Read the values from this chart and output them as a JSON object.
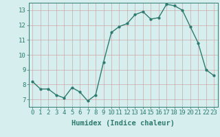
{
  "x": [
    0,
    1,
    2,
    3,
    4,
    5,
    6,
    7,
    8,
    9,
    10,
    11,
    12,
    13,
    14,
    15,
    16,
    17,
    18,
    19,
    20,
    21,
    22,
    23
  ],
  "y": [
    8.2,
    7.7,
    7.7,
    7.3,
    7.1,
    7.8,
    7.5,
    6.9,
    7.3,
    9.5,
    11.5,
    11.9,
    12.1,
    12.7,
    12.9,
    12.4,
    12.5,
    13.4,
    13.3,
    13.0,
    11.9,
    10.8,
    9.0,
    8.6
  ],
  "line_color": "#2d7a6e",
  "marker": "o",
  "marker_size": 2,
  "line_width": 1.0,
  "bg_color": "#d6eeee",
  "grid_color_h": "#c8b8b8",
  "grid_color_v": "#c8b8b8",
  "xlabel": "Humidex (Indice chaleur)",
  "xlim": [
    -0.5,
    23.5
  ],
  "ylim": [
    6.5,
    13.5
  ],
  "yticks": [
    7,
    8,
    9,
    10,
    11,
    12,
    13
  ],
  "xticks": [
    0,
    1,
    2,
    3,
    4,
    5,
    6,
    7,
    8,
    9,
    10,
    11,
    12,
    13,
    14,
    15,
    16,
    17,
    18,
    19,
    20,
    21,
    22,
    23
  ],
  "tick_color": "#2d7a6e",
  "label_color": "#2d7a6e",
  "font_size": 6.5,
  "xlabel_fontsize": 7.5
}
